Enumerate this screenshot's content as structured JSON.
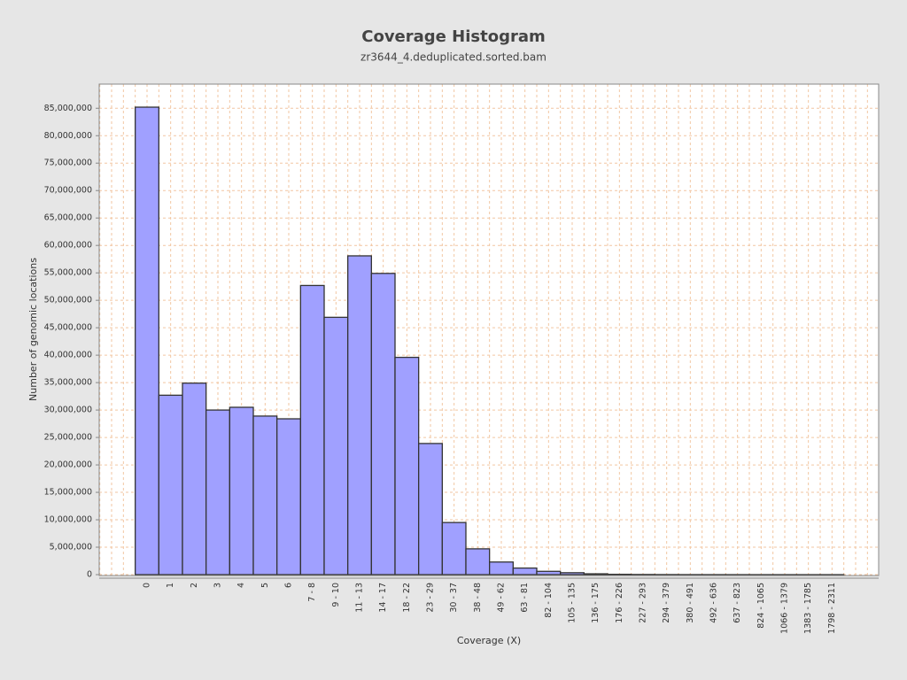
{
  "chart_data": {
    "type": "bar",
    "title": "Coverage Histogram",
    "subtitle": "zr3644_4.deduplicated.sorted.bam",
    "x_label": "Coverage (X)",
    "y_label": "Number of genomic locations",
    "categories": [
      "0",
      "1",
      "2",
      "3",
      "4",
      "5",
      "6",
      "7 - 8",
      "9 - 10",
      "11 - 13",
      "14 - 17",
      "18 - 22",
      "23 - 29",
      "30 - 37",
      "38 - 48",
      "49 - 62",
      "63 - 81",
      "82 - 104",
      "105 - 135",
      "136 - 175",
      "176 - 226",
      "227 - 293",
      "294 - 379",
      "380 - 491",
      "492 - 636",
      "637 - 823",
      "824 - 1065",
      "1066 - 1379",
      "1383 - 1785",
      "1798 - 2311"
    ],
    "values": [
      85200000,
      32700000,
      34900000,
      30000000,
      30500000,
      28900000,
      28400000,
      52700000,
      46900000,
      58100000,
      54900000,
      39600000,
      23900000,
      9500000,
      4700000,
      2300000,
      1200000,
      600000,
      350000,
      150000,
      60000,
      30000,
      15000,
      8000,
      4000,
      2000,
      1000,
      500,
      200,
      100
    ],
    "color": "#a0a0ff",
    "ylim": [
      0,
      89400000
    ],
    "yticks": [
      0,
      {
        "value": 5000000,
        "label": "5,000,000"
      },
      {
        "value": 10000000,
        "label": "10,000,000"
      },
      {
        "value": 15000000,
        "label": "15,000,000"
      },
      {
        "value": 20000000,
        "label": "20,000,000"
      },
      {
        "value": 25000000,
        "label": "25,000,000"
      },
      {
        "value": 30000000,
        "label": "30,000,000"
      },
      {
        "value": 35000000,
        "label": "35,000,000"
      },
      {
        "value": 40000000,
        "label": "40,000,000"
      },
      {
        "value": 45000000,
        "label": "45,000,000"
      },
      {
        "value": 50000000,
        "label": "50,000,000"
      },
      {
        "value": 55000000,
        "label": "55,000,000"
      },
      {
        "value": 60000000,
        "label": "60,000,000"
      },
      {
        "value": 65000000,
        "label": "65,000,000"
      },
      {
        "value": 70000000,
        "label": "70,000,000"
      },
      {
        "value": 75000000,
        "label": "75,000,000"
      },
      {
        "value": 80000000,
        "label": "80,000,000"
      },
      {
        "value": 85000000,
        "label": "85,000,000"
      }
    ],
    "grid": true
  }
}
